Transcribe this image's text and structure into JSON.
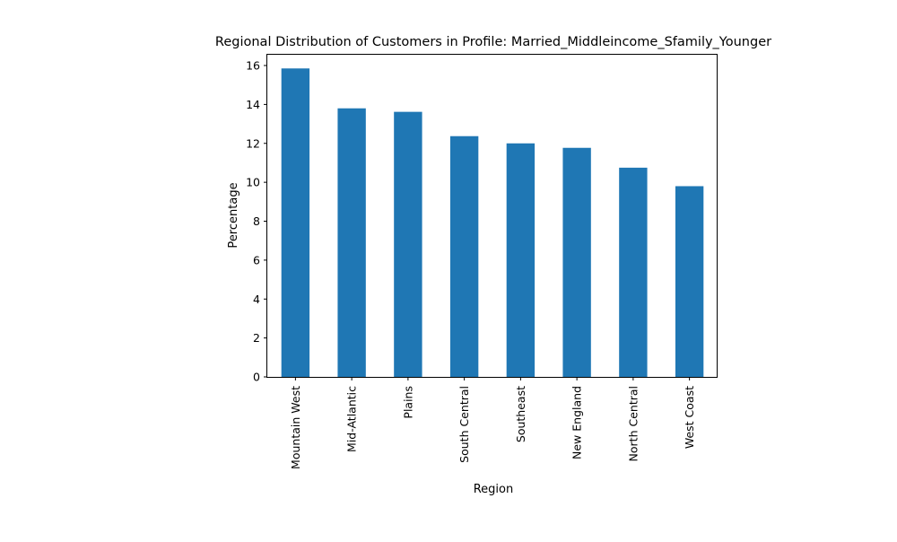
{
  "chart_data": {
    "type": "bar",
    "title": "Regional Distribution of Customers in Profile: Married_Middleincome_Sfamily_Younger",
    "xlabel": "Region",
    "ylabel": "Percentage",
    "categories": [
      "Mountain West",
      "Mid-Atlantic",
      "Plains",
      "South Central",
      "Southeast",
      "New England",
      "North Central",
      "West Coast"
    ],
    "values": [
      15.85,
      13.8,
      13.62,
      12.37,
      12.0,
      11.77,
      10.75,
      9.8
    ],
    "ylim": [
      0,
      16.6
    ],
    "yticks": [
      "0",
      "2",
      "4",
      "6",
      "8",
      "10",
      "12",
      "14",
      "16"
    ],
    "grid": false,
    "legend": "none",
    "bar_color": "#1f77b4"
  }
}
